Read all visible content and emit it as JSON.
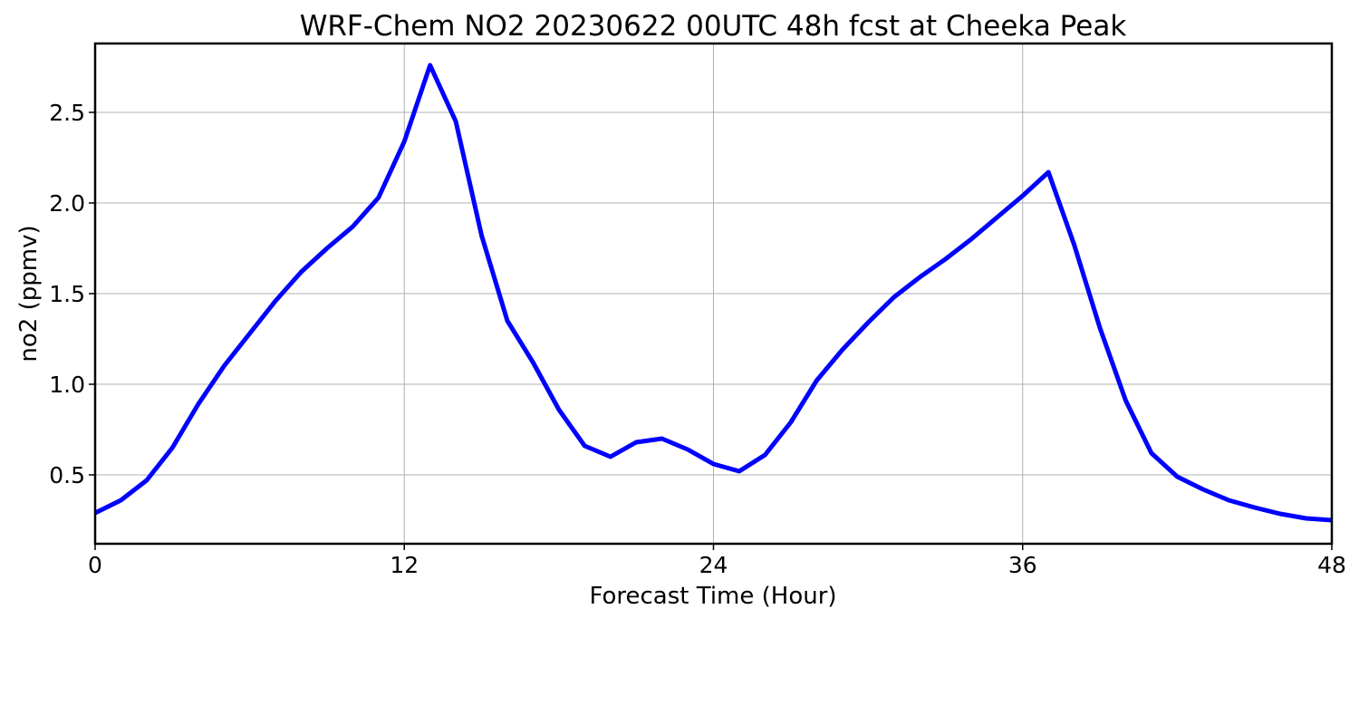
{
  "chart_data": {
    "type": "line",
    "title": "WRF-Chem NO2  20230622 00UTC 48h fcst at Cheeka Peak",
    "xlabel": "Forecast Time (Hour)",
    "ylabel": "no2  (ppmv)",
    "xlim": [
      0,
      48
    ],
    "ylim": [
      0.12,
      2.88
    ],
    "xticks": [
      0,
      12,
      24,
      36,
      48
    ],
    "xtick_labels": [
      "0",
      "12",
      "24",
      "36",
      "48"
    ],
    "yticks": [
      0.5,
      1.0,
      1.5,
      2.0,
      2.5
    ],
    "ytick_labels": [
      "0.5",
      "1.0",
      "1.5",
      "2.0",
      "2.5"
    ],
    "grid": true,
    "line_color": "#0000ff",
    "series": [
      {
        "x": [
          0,
          1,
          2,
          3,
          4,
          5,
          6,
          7,
          8,
          9,
          10,
          11,
          12,
          13,
          14,
          15,
          16,
          17,
          18,
          19,
          20,
          21,
          22,
          23,
          24,
          25,
          26,
          27,
          28,
          29,
          30,
          31,
          32,
          33,
          34,
          35,
          36,
          37,
          38,
          39,
          40,
          41,
          42,
          43,
          44,
          45,
          46,
          47,
          48
        ],
        "values": [
          0.29,
          0.36,
          0.47,
          0.65,
          0.89,
          1.1,
          1.28,
          1.46,
          1.62,
          1.75,
          1.87,
          2.03,
          2.34,
          2.76,
          2.45,
          1.82,
          1.35,
          1.12,
          0.86,
          0.66,
          0.6,
          0.68,
          0.7,
          0.64,
          0.56,
          0.52,
          0.61,
          0.79,
          1.02,
          1.19,
          1.34,
          1.48,
          1.59,
          1.69,
          1.8,
          1.92,
          2.04,
          2.17,
          1.77,
          1.31,
          0.91,
          0.62,
          0.49,
          0.42,
          0.36,
          0.32,
          0.285,
          0.26,
          0.25
        ]
      }
    ]
  }
}
